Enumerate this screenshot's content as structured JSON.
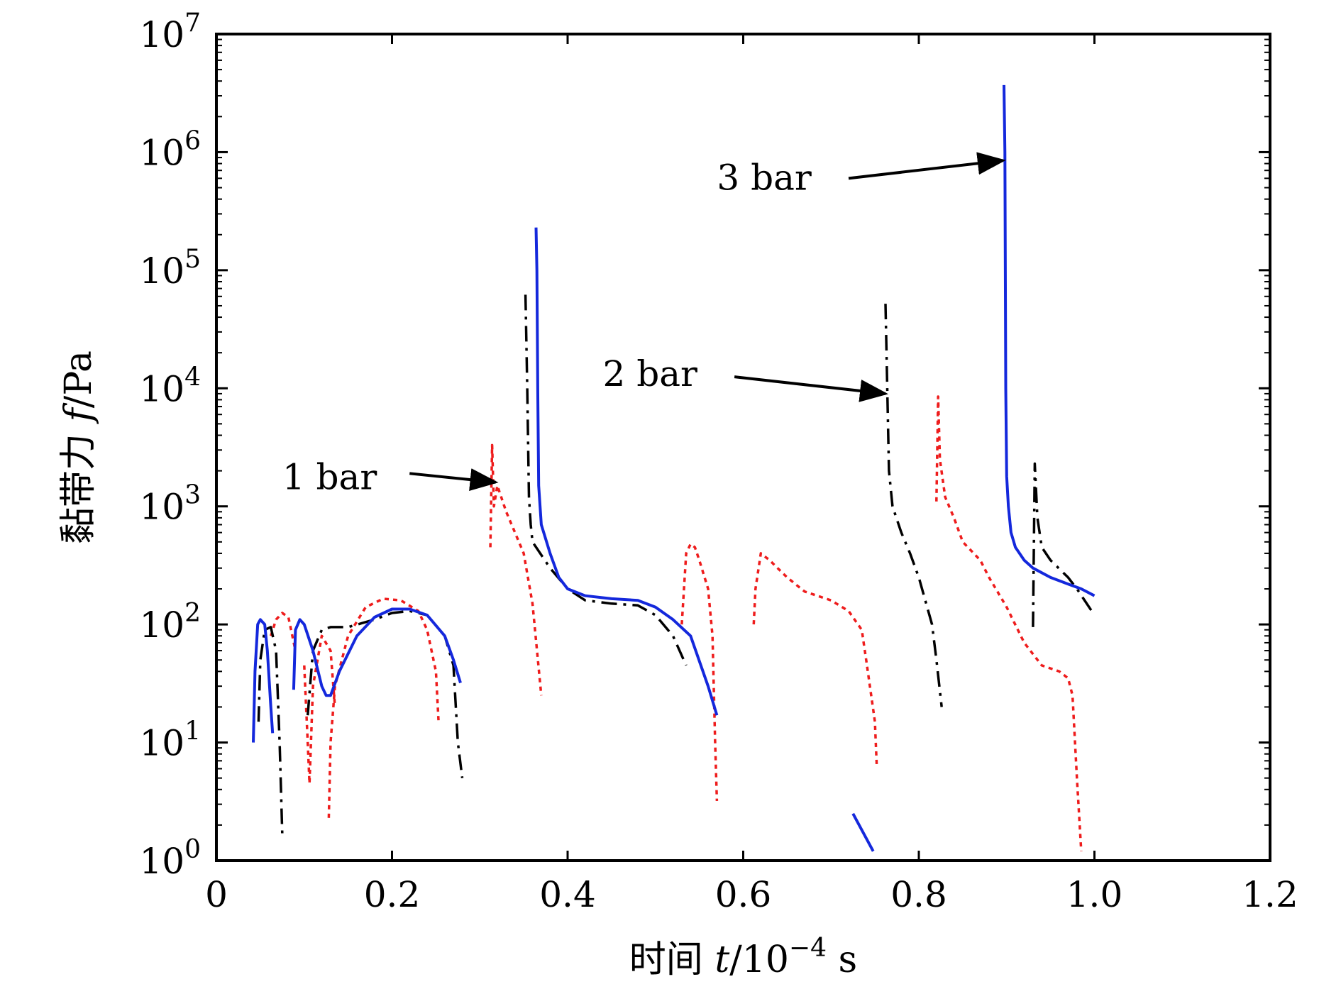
{
  "chart_data": {
    "type": "line",
    "xlabel": {
      "prefix": "时间 ",
      "var": "t",
      "unit_base": "/10",
      "unit_exp": "−4",
      "unit_suffix": " s"
    },
    "ylabel": {
      "prefix": "黏带力 ",
      "var": "f",
      "unit": "/Pa"
    },
    "xlim": [
      0,
      1.2
    ],
    "ylim": [
      1,
      10000000
    ],
    "yscale": "log",
    "grid": false,
    "x_ticks": [
      {
        "value": 0,
        "label": "0"
      },
      {
        "value": 0.2,
        "label": "0.2"
      },
      {
        "value": 0.4,
        "label": "0.4"
      },
      {
        "value": 0.6,
        "label": "0.6"
      },
      {
        "value": 0.8,
        "label": "0.8"
      },
      {
        "value": 1.0,
        "label": "1.0"
      },
      {
        "value": 1.2,
        "label": "1.2"
      }
    ],
    "y_ticks": [
      {
        "value": 1,
        "base": "10",
        "exp": "0"
      },
      {
        "value": 10,
        "base": "10",
        "exp": "1"
      },
      {
        "value": 100,
        "base": "10",
        "exp": "2"
      },
      {
        "value": 1000,
        "base": "10",
        "exp": "3"
      },
      {
        "value": 10000,
        "base": "10",
        "exp": "4"
      },
      {
        "value": 100000,
        "base": "10",
        "exp": "5"
      },
      {
        "value": 1000000,
        "base": "10",
        "exp": "6"
      },
      {
        "value": 10000000,
        "base": "10",
        "exp": "7"
      }
    ],
    "series": [
      {
        "color": "#ee1c1c",
        "style": "dotted",
        "segments": [
          [
            [
              0.062,
              80
            ],
            [
              0.068,
              110
            ],
            [
              0.075,
              125
            ],
            [
              0.082,
              115
            ],
            [
              0.09,
              60
            ]
          ],
          [
            [
              0.1,
              45
            ],
            [
              0.104,
              10
            ],
            [
              0.106,
              4.5
            ],
            [
              0.11,
              30
            ],
            [
              0.12,
              80
            ],
            [
              0.13,
              60
            ],
            [
              0.135,
              20
            ]
          ],
          [
            [
              0.128,
              2.3
            ],
            [
              0.13,
              10
            ],
            [
              0.135,
              30
            ],
            [
              0.15,
              80
            ],
            [
              0.17,
              140
            ],
            [
              0.19,
              165
            ],
            [
              0.21,
              160
            ],
            [
              0.23,
              130
            ],
            [
              0.24,
              90
            ],
            [
              0.25,
              40
            ],
            [
              0.253,
              15
            ]
          ],
          [
            [
              0.312,
              450
            ],
            [
              0.314,
              3300
            ],
            [
              0.316,
              1000
            ],
            [
              0.32,
              1500
            ],
            [
              0.33,
              900
            ],
            [
              0.34,
              600
            ],
            [
              0.35,
              400
            ],
            [
              0.36,
              150
            ],
            [
              0.37,
              25
            ]
          ],
          [
            [
              0.53,
              100
            ],
            [
              0.535,
              400
            ],
            [
              0.54,
              480
            ],
            [
              0.545,
              450
            ],
            [
              0.55,
              350
            ],
            [
              0.56,
              200
            ],
            [
              0.565,
              80
            ],
            [
              0.568,
              10
            ],
            [
              0.57,
              3.2
            ]
          ],
          [
            [
              0.612,
              100
            ],
            [
              0.614,
              200
            ],
            [
              0.62,
              400
            ],
            [
              0.63,
              350
            ],
            [
              0.65,
              250
            ],
            [
              0.67,
              190
            ],
            [
              0.7,
              160
            ],
            [
              0.72,
              130
            ],
            [
              0.735,
              90
            ],
            [
              0.74,
              50
            ],
            [
              0.75,
              15
            ],
            [
              0.752,
              6.5
            ]
          ],
          [
            [
              0.82,
              1100
            ],
            [
              0.822,
              8500
            ],
            [
              0.824,
              2500
            ],
            [
              0.83,
              1200
            ],
            [
              0.84,
              800
            ],
            [
              0.85,
              500
            ],
            [
              0.87,
              350
            ],
            [
              0.88,
              250
            ],
            [
              0.9,
              140
            ],
            [
              0.92,
              70
            ],
            [
              0.94,
              45
            ],
            [
              0.96,
              40
            ],
            [
              0.97,
              35
            ],
            [
              0.975,
              25
            ],
            [
              0.98,
              5
            ],
            [
              0.985,
              1.2
            ]
          ]
        ]
      },
      {
        "color": "#000000",
        "style": "dashdot",
        "segments": [
          [
            [
              0.048,
              15
            ],
            [
              0.05,
              50
            ],
            [
              0.055,
              90
            ],
            [
              0.062,
              95
            ],
            [
              0.068,
              60
            ],
            [
              0.072,
              10
            ],
            [
              0.075,
              1.7
            ]
          ],
          [
            [
              0.104,
              17
            ],
            [
              0.11,
              60
            ],
            [
              0.12,
              90
            ],
            [
              0.13,
              95
            ],
            [
              0.15,
              95
            ],
            [
              0.18,
              110
            ],
            [
              0.2,
              125
            ],
            [
              0.22,
              130
            ],
            [
              0.24,
              120
            ],
            [
              0.26,
              80
            ],
            [
              0.27,
              45
            ],
            [
              0.275,
              10
            ],
            [
              0.28,
              5
            ]
          ],
          [
            [
              0.352,
              62000
            ],
            [
              0.354,
              10000
            ],
            [
              0.356,
              1200
            ],
            [
              0.358,
              700
            ],
            [
              0.36,
              500
            ],
            [
              0.38,
              300
            ],
            [
              0.4,
              200
            ],
            [
              0.42,
              160
            ],
            [
              0.45,
              150
            ],
            [
              0.48,
              145
            ],
            [
              0.5,
              120
            ],
            [
              0.52,
              80
            ],
            [
              0.535,
              45
            ]
          ],
          [
            [
              0.762,
              52000
            ],
            [
              0.764,
              10000
            ],
            [
              0.766,
              2000
            ],
            [
              0.77,
              1000
            ],
            [
              0.78,
              600
            ],
            [
              0.79,
              400
            ],
            [
              0.8,
              250
            ],
            [
              0.815,
              100
            ],
            [
              0.82,
              50
            ],
            [
              0.826,
              20
            ]
          ],
          [
            [
              0.93,
              95
            ],
            [
              0.932,
              2300
            ],
            [
              0.935,
              800
            ],
            [
              0.94,
              450
            ],
            [
              0.95,
              350
            ],
            [
              0.97,
              250
            ],
            [
              0.98,
              200
            ],
            [
              1.0,
              120
            ]
          ]
        ]
      },
      {
        "color": "#1428dc",
        "style": "solid",
        "segments": [
          [
            [
              0.042,
              10
            ],
            [
              0.044,
              40
            ],
            [
              0.047,
              100
            ],
            [
              0.05,
              110
            ],
            [
              0.055,
              100
            ],
            [
              0.058,
              60
            ],
            [
              0.062,
              20
            ],
            [
              0.064,
              12
            ]
          ],
          [
            [
              0.088,
              28
            ],
            [
              0.09,
              90
            ],
            [
              0.095,
              110
            ],
            [
              0.1,
              100
            ],
            [
              0.11,
              60
            ],
            [
              0.12,
              30
            ],
            [
              0.125,
              25
            ],
            [
              0.13,
              25
            ],
            [
              0.14,
              40
            ],
            [
              0.16,
              80
            ],
            [
              0.18,
              115
            ],
            [
              0.2,
              135
            ],
            [
              0.22,
              135
            ],
            [
              0.24,
              120
            ],
            [
              0.26,
              80
            ],
            [
              0.27,
              50
            ],
            [
              0.278,
              32
            ]
          ],
          [
            [
              0.364,
              230000
            ],
            [
              0.365,
              100000
            ],
            [
              0.366,
              10000
            ],
            [
              0.367,
              1500
            ],
            [
              0.37,
              700
            ],
            [
              0.38,
              400
            ],
            [
              0.39,
              250
            ],
            [
              0.4,
              200
            ],
            [
              0.42,
              175
            ],
            [
              0.45,
              165
            ],
            [
              0.48,
              160
            ],
            [
              0.5,
              140
            ],
            [
              0.52,
              110
            ],
            [
              0.54,
              80
            ],
            [
              0.56,
              30
            ],
            [
              0.57,
              17
            ]
          ],
          [
            [
              0.725,
              2.5
            ],
            [
              0.748,
              1.2
            ]
          ],
          [
            [
              0.897,
              3700000
            ],
            [
              0.898,
              1000000
            ],
            [
              0.899,
              10000
            ],
            [
              0.9,
              1800
            ],
            [
              0.902,
              1000
            ],
            [
              0.905,
              600
            ],
            [
              0.91,
              450
            ],
            [
              0.92,
              350
            ],
            [
              0.93,
              300
            ],
            [
              0.95,
              250
            ],
            [
              0.97,
              220
            ],
            [
              0.985,
              200
            ],
            [
              1.0,
              175
            ]
          ]
        ]
      }
    ],
    "annotations": [
      {
        "text": "1 bar",
        "text_x": 0.075,
        "text_y": 1400,
        "arrow_from": [
          0.22,
          1900
        ],
        "arrow_to": [
          0.318,
          1600
        ]
      },
      {
        "text": "2 bar",
        "text_x": 0.44,
        "text_y": 10500,
        "arrow_from": [
          0.59,
          12500
        ],
        "arrow_to": [
          0.762,
          9000
        ]
      },
      {
        "text": "3 bar",
        "text_x": 0.57,
        "text_y": 480000,
        "arrow_from": [
          0.72,
          600000
        ],
        "arrow_to": [
          0.896,
          850000
        ]
      }
    ]
  }
}
